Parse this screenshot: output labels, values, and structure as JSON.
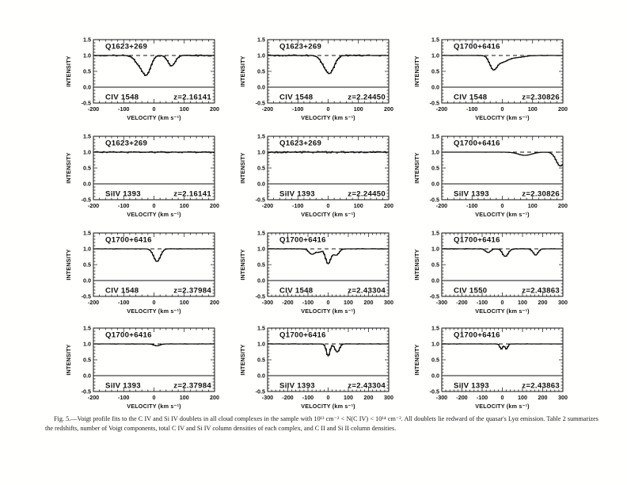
{
  "figure": {
    "caption": "Fig. 5.—Voigt profile fits to the C IV and Si IV doublets in all cloud complexes in the sample with 10¹³ cm⁻² < N(C IV) < 10¹⁴ cm⁻². All doublets lie redward of the quasar's Lyα emission. Table 2 summarizes the redshifts, number of Voigt components, total C IV and Si IV column densities of each complex, and C II and Si II column densities."
  },
  "chart_data": {
    "type": "line",
    "title": "Voigt profile fits to C IV and Si IV doublets",
    "grid": false,
    "legend": "none",
    "ylabel": "INTENSITY",
    "xlabel": "VELOCITY (km s⁻¹)",
    "ylim": [
      -0.5,
      1.5
    ],
    "yticks": [
      1.5,
      1.0,
      0.5,
      0.0,
      -0.5
    ],
    "continuum_level": 1.0,
    "zero_level": 0.0,
    "line_color": "#111111",
    "panels": [
      {
        "row": 0,
        "col": 0,
        "qso": "Q1623+269",
        "line": "CIV 1548",
        "z_label": "z=2.16141",
        "xlim": [
          -200,
          200
        ],
        "xticks": [
          -200,
          -100,
          0,
          100,
          200
        ],
        "noise": 0.025,
        "components": [
          {
            "center": -25,
            "depth": 0.6,
            "width": 14
          },
          {
            "center": -52,
            "depth": 0.22,
            "width": 13
          },
          {
            "center": 58,
            "depth": 0.33,
            "width": 12
          }
        ]
      },
      {
        "row": 0,
        "col": 1,
        "qso": "Q1623+269",
        "line": "CIV 1548",
        "z_label": "z=2.24450",
        "xlim": [
          -200,
          200
        ],
        "xticks": [
          -200,
          -100,
          0,
          100,
          200
        ],
        "noise": 0.025,
        "components": [
          {
            "center": 5,
            "depth": 0.55,
            "width": 15
          },
          {
            "center": -18,
            "depth": 0.12,
            "width": 12
          }
        ]
      },
      {
        "row": 0,
        "col": 2,
        "qso": "Q1700+6416",
        "line": "CIV 1548",
        "z_label": "z=2.30826",
        "xlim": [
          -200,
          200
        ],
        "xticks": [
          -200,
          -100,
          0,
          100,
          200
        ],
        "noise": 0.01,
        "components": [
          {
            "center": -30,
            "depth": 0.4,
            "width": 12
          },
          {
            "center": -2,
            "depth": 0.18,
            "width": 18
          },
          {
            "center": 40,
            "depth": 0.07,
            "width": 28
          }
        ]
      },
      {
        "row": 1,
        "col": 0,
        "qso": "Q1623+269",
        "line": "SiIV 1393",
        "z_label": "z=2.16141",
        "xlim": [
          -200,
          200
        ],
        "xticks": [
          -200,
          -100,
          0,
          100,
          200
        ],
        "noise": 0.025,
        "components": []
      },
      {
        "row": 1,
        "col": 1,
        "qso": "Q1623+269",
        "line": "SiIV 1393",
        "z_label": "z=2.24450",
        "xlim": [
          -200,
          200
        ],
        "xticks": [
          -200,
          -100,
          0,
          100,
          200
        ],
        "noise": 0.028,
        "components": []
      },
      {
        "row": 1,
        "col": 2,
        "qso": "Q1700+6416",
        "line": "SiIV 1393",
        "z_label": "z=2.30826",
        "xlim": [
          -200,
          200
        ],
        "xticks": [
          -200,
          -100,
          0,
          100,
          200
        ],
        "noise": 0.004,
        "components": [
          {
            "center": 75,
            "depth": 0.1,
            "width": 22
          },
          {
            "center": 192,
            "depth": 0.44,
            "width": 14
          }
        ]
      },
      {
        "row": 2,
        "col": 0,
        "qso": "Q1700+6416",
        "line": "CIV 1548",
        "z_label": "z=2.37984",
        "xlim": [
          -200,
          200
        ],
        "xticks": [
          -200,
          -100,
          0,
          100,
          200
        ],
        "noise": 0.008,
        "components": [
          {
            "center": 10,
            "depth": 0.4,
            "width": 11
          }
        ]
      },
      {
        "row": 2,
        "col": 1,
        "qso": "Q1700+6416",
        "line": "CIV 1548",
        "z_label": "z=2.43304",
        "xlim": [
          -300,
          300
        ],
        "xticks": [
          -300,
          -200,
          -100,
          0,
          100,
          200,
          300
        ],
        "noise": 0.012,
        "components": [
          {
            "center": -80,
            "depth": 0.17,
            "width": 15
          },
          {
            "center": -45,
            "depth": 0.1,
            "width": 12
          },
          {
            "center": 0,
            "depth": 0.47,
            "width": 13
          },
          {
            "center": 40,
            "depth": 0.2,
            "width": 14
          }
        ]
      },
      {
        "row": 2,
        "col": 2,
        "qso": "Q1700+6416",
        "line": "CIV 1550",
        "z_label": "z=2.43863",
        "xlim": [
          -300,
          300
        ],
        "xticks": [
          -300,
          -200,
          -100,
          0,
          100,
          200,
          300
        ],
        "noise": 0.012,
        "components": [
          {
            "center": -70,
            "depth": 0.12,
            "width": 12
          },
          {
            "center": 15,
            "depth": 0.24,
            "width": 14
          },
          {
            "center": 165,
            "depth": 0.2,
            "width": 12
          }
        ]
      },
      {
        "row": 3,
        "col": 0,
        "qso": "Q1700+6416",
        "line": "SiIV 1393",
        "z_label": "z=2.37984",
        "xlim": [
          -200,
          200
        ],
        "xticks": [
          -200,
          -100,
          0,
          100,
          200
        ],
        "noise": 0.008,
        "components": [
          {
            "center": 10,
            "depth": 0.06,
            "width": 10
          }
        ]
      },
      {
        "row": 3,
        "col": 1,
        "qso": "Q1700+6416",
        "line": "SiIV 1393",
        "z_label": "z=2.43304",
        "xlim": [
          -300,
          300
        ],
        "xticks": [
          -300,
          -200,
          -100,
          0,
          100,
          200,
          300
        ],
        "noise": 0.01,
        "components": [
          {
            "center": 0,
            "depth": 0.38,
            "width": 9
          },
          {
            "center": 45,
            "depth": 0.26,
            "width": 11
          }
        ]
      },
      {
        "row": 3,
        "col": 2,
        "qso": "Q1700+6416",
        "line": "SiIV 1393",
        "z_label": "z=2.43863",
        "xlim": [
          -300,
          300
        ],
        "xticks": [
          -300,
          -200,
          -100,
          0,
          100,
          200,
          300
        ],
        "noise": 0.008,
        "components": [
          {
            "center": -5,
            "depth": 0.16,
            "width": 7
          },
          {
            "center": 20,
            "depth": 0.16,
            "width": 7
          }
        ]
      }
    ]
  }
}
